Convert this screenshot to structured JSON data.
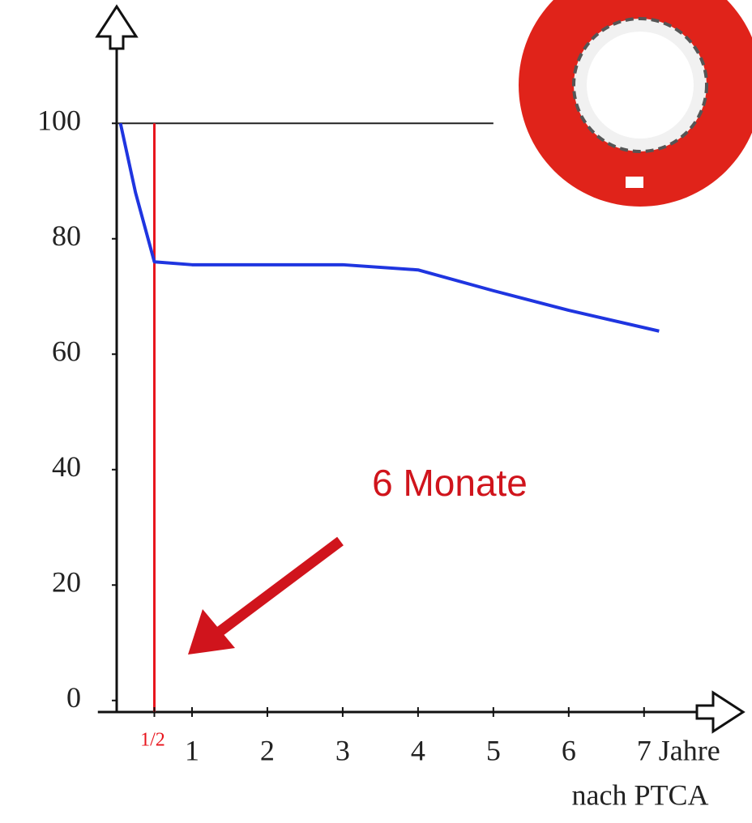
{
  "chart_data": {
    "type": "line",
    "x": [
      0.05,
      0.25,
      0.5,
      1,
      2,
      3,
      4,
      5,
      6,
      7.2
    ],
    "series": [
      {
        "color": "#1f35e0",
        "values": [
          100,
          88,
          76,
          75.5,
          75.5,
          75.5,
          74.6,
          71,
          67.6,
          64
        ]
      }
    ],
    "xlim": [
      -0.25,
      8.25
    ],
    "ylim": [
      -2,
      118
    ],
    "xticks": [
      {
        "value": 0.5,
        "label": "1/2"
      },
      1,
      2,
      3,
      4,
      5,
      6,
      7
    ],
    "yticks": [
      0,
      20,
      40,
      60,
      80,
      100
    ],
    "xlabel_lines": [
      "Jahre",
      "nach PTCA"
    ],
    "reference_line": {
      "y": 100,
      "xlim": [
        0,
        5
      ]
    },
    "marker_line": {
      "x": 0.5,
      "color": "#e8141c"
    },
    "annotation": {
      "text": "6 Monate",
      "color": "#d0141c"
    }
  }
}
